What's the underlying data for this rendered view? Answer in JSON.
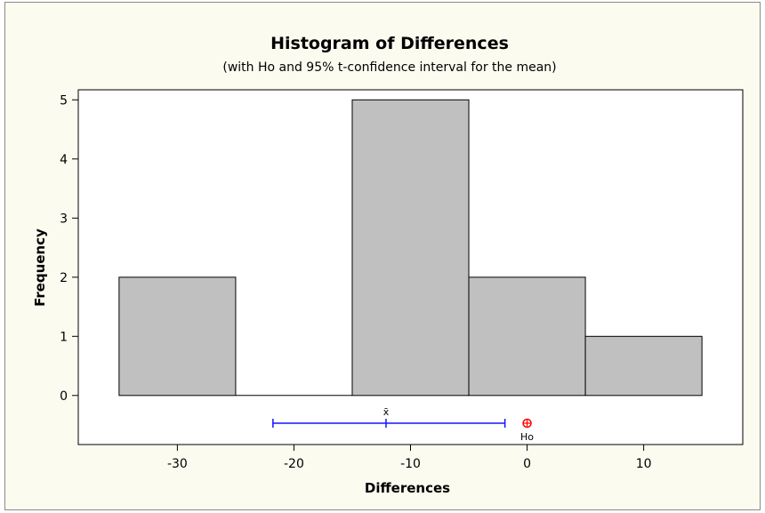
{
  "chart_data": {
    "type": "bar",
    "title": "Histogram of Differences",
    "subtitle": "(with Ho and 95% t-confidence interval for the mean)",
    "xlabel": "Differences",
    "ylabel": "Frequency",
    "bins": [
      {
        "start": -35,
        "end": -25,
        "count": 2
      },
      {
        "start": -25,
        "end": -15,
        "count": 0
      },
      {
        "start": -15,
        "end": -5,
        "count": 5
      },
      {
        "start": -5,
        "end": 5,
        "count": 2
      },
      {
        "start": 5,
        "end": 15,
        "count": 1
      }
    ],
    "xticks": [
      -30,
      -20,
      -10,
      0,
      10
    ],
    "yticks": [
      0,
      1,
      2,
      3,
      4,
      5
    ],
    "xlim": [
      -38.5,
      18.5
    ],
    "ylim": [
      -0.83,
      5.17
    ],
    "confidence_interval": {
      "mean": -12.1,
      "lower": -21.8,
      "upper": -1.9,
      "mean_label": "x̄",
      "color": "#1515ff"
    },
    "h0": {
      "value": 0,
      "label": "Ho",
      "color": "#ff0000"
    },
    "bar_color": "#c0c0c0",
    "background_color": "#fcfbf0",
    "plot_background": "#ffffff"
  }
}
